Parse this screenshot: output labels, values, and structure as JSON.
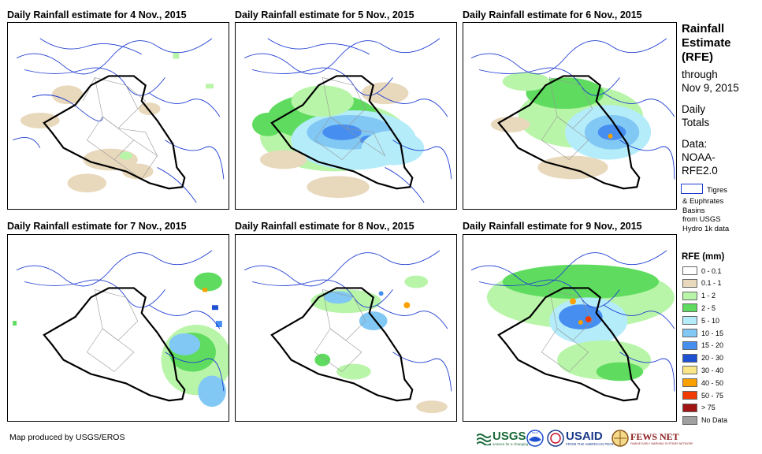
{
  "panels": [
    {
      "title": "Daily Rainfall estimate for 4 Nov., 2015"
    },
    {
      "title": "Daily Rainfall estimate for 5 Nov., 2015"
    },
    {
      "title": "Daily Rainfall estimate for 6 Nov., 2015"
    },
    {
      "title": "Daily Rainfall estimate for 7 Nov., 2015"
    },
    {
      "title": "Daily Rainfall estimate for 8 Nov., 2015"
    },
    {
      "title": "Daily Rainfall estimate for 9 Nov., 2015"
    }
  ],
  "side": {
    "title_line1": "Rainfall",
    "title_line2": "Estimate",
    "title_line3": "(RFE)",
    "through_line1": "through",
    "through_line2": "Nov 9, 2015",
    "daily_line1": "Daily",
    "daily_line2": "Totals",
    "data_line1": "Data:",
    "data_line2": "NOAA-",
    "data_line3": "RFE2.0",
    "basin_line1": "Tigres",
    "basin_line2": "& Euphrates",
    "basin_line3": "Basins",
    "basin_line4": "from USGS",
    "basin_line5": "Hydro 1k data"
  },
  "legend": {
    "title": "RFE (mm)",
    "items": [
      {
        "label": "0 - 0.1",
        "color": "#ffffff"
      },
      {
        "label": "0.1 - 1",
        "color": "#e8d8bc"
      },
      {
        "label": "1 - 2",
        "color": "#b8f5a8"
      },
      {
        "label": "2 - 5",
        "color": "#5fdc5f"
      },
      {
        "label": "5 - 10",
        "color": "#b4ecfa"
      },
      {
        "label": "10 - 15",
        "color": "#82c8f5"
      },
      {
        "label": "15 - 20",
        "color": "#468ef0"
      },
      {
        "label": "20 - 30",
        "color": "#1e50d2"
      },
      {
        "label": "30 - 40",
        "color": "#fae687"
      },
      {
        "label": "40 - 50",
        "color": "#faa000"
      },
      {
        "label": "50 - 75",
        "color": "#f03c00"
      },
      {
        "label": "> 75",
        "color": "#a01414"
      },
      {
        "label": "No Data",
        "color": "#a0a0a0"
      }
    ]
  },
  "footer": {
    "credit": "Map produced by USGS/EROS",
    "usgs": "USGS",
    "usgs_tagline": "science for a changing world",
    "noaa": "NOAA",
    "usaid": "USAID",
    "usaid_tagline": "FROM THE AMERICAN PEOPLE",
    "fews": "FEWS NET",
    "fews_tagline": "FAMINE EARLY WARNING SYSTEMS NETWORK"
  },
  "colors": {
    "border": "#000000",
    "basin": "#1e3cd2",
    "province": "#969696"
  }
}
